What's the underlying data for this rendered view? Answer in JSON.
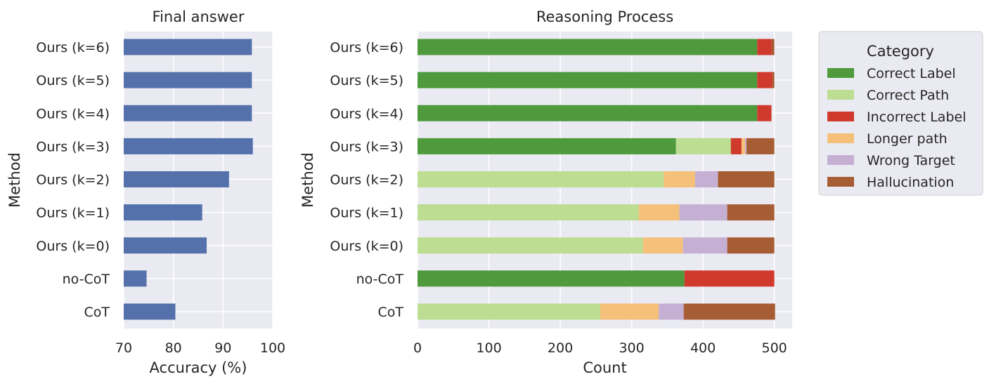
{
  "chart_data": [
    {
      "type": "bar",
      "orientation": "horizontal",
      "title": "Final answer",
      "xlabel": "Accuracy (%)",
      "ylabel": "Method",
      "xlim": [
        70,
        100
      ],
      "xticks": [
        70,
        80,
        90,
        100
      ],
      "grid": true,
      "bar_color": "#5471ab",
      "categories": [
        "Ours (k=6)",
        "Ours (k=5)",
        "Ours (k=4)",
        "Ours (k=3)",
        "Ours (k=2)",
        "Ours (k=1)",
        "Ours (k=0)",
        "no-CoT",
        "CoT"
      ],
      "values": [
        95.8,
        95.8,
        95.8,
        96.0,
        91.2,
        85.8,
        86.7,
        74.6,
        80.4
      ]
    },
    {
      "type": "bar",
      "orientation": "horizontal",
      "stacked": true,
      "title": "Reasoning Process",
      "xlabel": "Count",
      "ylabel": "Method",
      "xlim": [
        0,
        525
      ],
      "xticks": [
        0,
        100,
        200,
        300,
        400,
        500
      ],
      "grid": true,
      "legend": {
        "title": "Category",
        "placement": "outside-right-top"
      },
      "categories": [
        "Ours (k=6)",
        "Ours (k=5)",
        "Ours (k=4)",
        "Ours (k=3)",
        "Ours (k=2)",
        "Ours (k=1)",
        "Ours (k=0)",
        "no-CoT",
        "CoT"
      ],
      "series": [
        {
          "name": "Correct Label",
          "color": "#4e9a3c",
          "values": [
            476,
            476,
            476,
            362,
            0,
            0,
            0,
            374,
            0
          ]
        },
        {
          "name": "Correct Path",
          "color": "#bcdd92",
          "values": [
            0,
            0,
            0,
            77,
            345,
            310,
            316,
            0,
            256
          ]
        },
        {
          "name": "Incorrect Label",
          "color": "#d03a2c",
          "values": [
            20,
            21,
            20,
            15,
            0,
            0,
            0,
            126,
            0
          ]
        },
        {
          "name": "Longer path",
          "color": "#f5c07a",
          "values": [
            0,
            0,
            0,
            5,
            44,
            57,
            56,
            0,
            82
          ]
        },
        {
          "name": "Wrong Target",
          "color": "#c5b0d4",
          "values": [
            0,
            0,
            0,
            2,
            32,
            67,
            62,
            0,
            35
          ]
        },
        {
          "name": "Hallucination",
          "color": "#a65d34",
          "values": [
            4,
            3,
            0,
            39,
            79,
            66,
            66,
            0,
            128
          ]
        }
      ]
    }
  ]
}
